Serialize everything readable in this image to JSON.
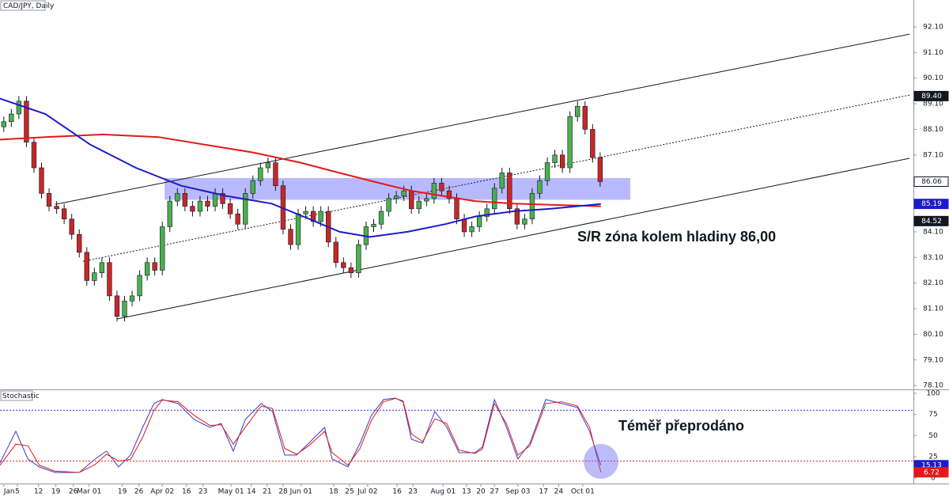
{
  "chart_data": [
    {
      "type": "candlestick",
      "title": "CAD/JPY, Daily",
      "annotation": "S/R zóna kolem hladiny 86,00",
      "xlim": [
        0,
        121
      ],
      "ylim": [
        77.95,
        93.15
      ],
      "yticks": [
        {
          "value": 78.1,
          "label": "78.10"
        },
        {
          "value": 79.1,
          "label": "79.10"
        },
        {
          "value": 80.1,
          "label": "80.10"
        },
        {
          "value": 81.1,
          "label": "81.10"
        },
        {
          "value": 82.1,
          "label": "82.10"
        },
        {
          "value": 83.1,
          "label": "83.10"
        },
        {
          "value": 84.1,
          "label": "84.10"
        },
        {
          "value": 85.1,
          "label": "85.10"
        },
        {
          "value": 86.1,
          "label": "86.10"
        },
        {
          "value": 87.1,
          "label": "87.10"
        },
        {
          "value": 88.1,
          "label": "88.10"
        },
        {
          "value": 89.1,
          "label": "89.10"
        },
        {
          "value": 90.1,
          "label": "90.10"
        },
        {
          "value": 91.1,
          "label": "91.10"
        },
        {
          "value": 92.1,
          "label": "92.10"
        }
      ],
      "xticks": [
        {
          "value": 0.5,
          "label": "Jan"
        },
        {
          "value": 2.3,
          "label": "5"
        },
        {
          "value": 5.1,
          "label": "12"
        },
        {
          "value": 7.4,
          "label": "19"
        },
        {
          "value": 9.7,
          "label": "26"
        },
        {
          "value": 11.8,
          "label": "Mar 01"
        },
        {
          "value": 16.2,
          "label": "19"
        },
        {
          "value": 18.4,
          "label": "26"
        },
        {
          "value": 21.5,
          "label": "Apr 02"
        },
        {
          "value": 24.7,
          "label": "16"
        },
        {
          "value": 26.9,
          "label": "23"
        },
        {
          "value": 30.6,
          "label": "May 01"
        },
        {
          "value": 33.3,
          "label": "14"
        },
        {
          "value": 35.4,
          "label": "21"
        },
        {
          "value": 37.5,
          "label": "28"
        },
        {
          "value": 39.9,
          "label": "Jun 01"
        },
        {
          "value": 44.2,
          "label": "18"
        },
        {
          "value": 46.3,
          "label": "25"
        },
        {
          "value": 48.7,
          "label": "Jul 02"
        },
        {
          "value": 52.6,
          "label": "16"
        },
        {
          "value": 54.7,
          "label": "23"
        },
        {
          "value": 58.7,
          "label": "Aug 01"
        },
        {
          "value": 61.8,
          "label": "13"
        },
        {
          "value": 63.7,
          "label": "20"
        },
        {
          "value": 65.5,
          "label": "27"
        },
        {
          "value": 68.6,
          "label": "Sep 03"
        },
        {
          "value": 72,
          "label": "17"
        },
        {
          "value": 74,
          "label": "24"
        },
        {
          "value": 77.2,
          "label": "Oct 01"
        }
      ],
      "up_color": "#4caf50",
      "down_color": "#c62828",
      "open": [
        88.2,
        88.4,
        88.7,
        89.2,
        87.6,
        86.6,
        85.6,
        85.1,
        85.0,
        84.6,
        84.0,
        83.3,
        82.2,
        82.5,
        82.9,
        81.6,
        80.8,
        81.4,
        81.6,
        82.4,
        82.9,
        82.6,
        84.3,
        85.3,
        85.6,
        85.1,
        84.9,
        85.3,
        85.1,
        85.6,
        85.2,
        84.8,
        84.4,
        85.6,
        86.1,
        86.6,
        86.8,
        85.9,
        84.2,
        83.6,
        84.8,
        84.9,
        84.5,
        84.9,
        83.7,
        82.9,
        82.7,
        82.5,
        83.6,
        84.3,
        84.4,
        84.9,
        85.4,
        85.5,
        85.7,
        85.0,
        85.3,
        85.4,
        86.0,
        85.7,
        85.4,
        84.6,
        84.1,
        84.3,
        84.7,
        85.0,
        85.8,
        86.4,
        85.0,
        84.4,
        84.6,
        85.6,
        86.1,
        86.8,
        87.1,
        86.6,
        88.6,
        89.0,
        88.1,
        87.0
      ],
      "high": [
        88.6,
        88.9,
        89.4,
        89.4,
        87.8,
        86.8,
        85.8,
        85.3,
        85.2,
        84.8,
        84.2,
        83.5,
        82.7,
        83.1,
        83.1,
        81.8,
        81.6,
        81.8,
        82.6,
        83.1,
        83.1,
        84.5,
        85.5,
        85.8,
        85.8,
        85.3,
        85.5,
        85.5,
        85.8,
        85.8,
        85.4,
        85.0,
        85.8,
        86.3,
        86.8,
        87.0,
        87.0,
        86.1,
        84.4,
        85.0,
        85.1,
        85.1,
        85.1,
        85.1,
        83.9,
        83.1,
        82.9,
        83.8,
        84.5,
        84.6,
        85.1,
        85.6,
        85.7,
        85.9,
        85.9,
        85.5,
        85.6,
        86.2,
        86.2,
        85.9,
        85.6,
        84.8,
        84.5,
        84.9,
        85.2,
        86.0,
        86.6,
        86.6,
        85.2,
        84.8,
        85.8,
        86.3,
        87.0,
        87.3,
        87.3,
        88.8,
        89.2,
        89.2,
        88.3,
        87.2
      ],
      "low": [
        88.0,
        88.2,
        88.5,
        87.4,
        86.4,
        85.4,
        84.9,
        84.8,
        84.4,
        83.8,
        83.1,
        82.0,
        82.0,
        82.3,
        81.4,
        80.6,
        80.6,
        81.2,
        81.4,
        82.2,
        82.4,
        82.4,
        84.1,
        85.1,
        84.9,
        84.7,
        84.7,
        84.9,
        84.9,
        85.0,
        84.6,
        84.2,
        84.2,
        85.4,
        85.9,
        86.4,
        85.7,
        84.0,
        83.4,
        83.4,
        84.6,
        84.3,
        84.3,
        83.5,
        82.7,
        82.5,
        82.3,
        82.3,
        83.4,
        84.1,
        84.2,
        84.7,
        85.2,
        85.3,
        84.8,
        84.8,
        85.1,
        85.2,
        85.5,
        85.2,
        84.4,
        83.9,
        83.9,
        84.1,
        84.5,
        84.8,
        85.6,
        84.8,
        84.2,
        84.2,
        84.4,
        85.4,
        85.9,
        86.6,
        86.4,
        86.4,
        88.4,
        87.9,
        86.8,
        85.86
      ],
      "close": [
        88.4,
        88.7,
        89.2,
        87.6,
        86.6,
        85.6,
        85.1,
        85.0,
        84.6,
        84.0,
        83.3,
        82.2,
        82.5,
        82.9,
        81.6,
        80.8,
        81.4,
        81.6,
        82.4,
        82.9,
        82.6,
        84.3,
        85.3,
        85.6,
        85.1,
        84.9,
        85.3,
        85.1,
        85.6,
        85.2,
        84.8,
        84.4,
        85.6,
        86.1,
        86.6,
        86.8,
        85.9,
        84.2,
        83.6,
        84.8,
        84.9,
        84.5,
        84.9,
        83.7,
        82.9,
        82.7,
        82.5,
        83.6,
        84.3,
        84.4,
        84.9,
        85.4,
        85.5,
        85.7,
        85.0,
        85.3,
        85.4,
        86.0,
        85.7,
        85.4,
        84.6,
        84.1,
        84.3,
        84.7,
        85.0,
        85.8,
        86.4,
        85.0,
        84.4,
        84.6,
        85.6,
        86.1,
        86.8,
        87.1,
        86.6,
        88.6,
        89.0,
        88.1,
        87.0,
        86.06
      ],
      "lines": [
        {
          "color": "#e01a1a",
          "x": [
            0,
            6,
            13.6,
            21,
            27.2,
            33.5,
            39.8,
            45,
            50.3,
            54.5,
            58.7,
            62.9,
            68.1,
            73.3,
            79.6
          ],
          "values": [
            87.7,
            87.8,
            87.9,
            87.8,
            87.5,
            87.2,
            86.8,
            86.4,
            86.0,
            85.7,
            85.5,
            85.3,
            85.2,
            85.15,
            85.1
          ]
        },
        {
          "color": "#1c1cc8",
          "x": [
            0,
            6,
            12,
            18,
            24,
            30,
            36,
            41,
            45,
            49,
            54,
            59,
            63,
            68,
            73,
            79.6
          ],
          "values": [
            89.3,
            88.7,
            87.5,
            86.6,
            85.9,
            85.5,
            85.2,
            84.6,
            84.1,
            83.9,
            84.1,
            84.4,
            84.7,
            84.9,
            85.0,
            85.19
          ]
        }
      ],
      "trendlines": [
        {
          "style": "solid",
          "x": [
            7.3,
            120.5
          ],
          "values": [
            85.17,
            91.82
          ]
        },
        {
          "style": "dotted",
          "x": [
            11,
            120.5
          ],
          "values": [
            82.95,
            89.44
          ]
        },
        {
          "style": "solid",
          "x": [
            15.5,
            120.5
          ],
          "values": [
            80.7,
            86.97
          ]
        }
      ],
      "zone": {
        "color": "#8080ff",
        "x": [
          21.8,
          83.5
        ],
        "values": [
          85.35,
          86.2
        ]
      },
      "price_labels": [
        {
          "value": 89.4,
          "label": "89.40",
          "color": "#131722",
          "text_color": "#ffffff"
        },
        {
          "value": 86.06,
          "label": "86.06",
          "color": "#ffffff",
          "text_color": "#131722"
        },
        {
          "value": 85.19,
          "label": "85.19",
          "color": "#1c1cc8",
          "text_color": "#ffffff"
        },
        {
          "value": 84.52,
          "label": "84.52",
          "color": "#131722",
          "text_color": "#ffffff"
        }
      ]
    },
    {
      "type": "line",
      "title": "Stochastic",
      "annotation": "Téměř přeprodáno",
      "xlim": [
        0,
        121
      ],
      "ylim": [
        -5.6,
        103.7
      ],
      "yticks": [
        0,
        25,
        50,
        75,
        100
      ],
      "levels": [
        {
          "value": 80,
          "color": "#3a3ad0"
        },
        {
          "value": 20,
          "color": "#e01a1a"
        }
      ],
      "lines": [
        {
          "color": "#3a3ad0",
          "x": [
            0,
            2.1,
            3.7,
            5.2,
            7.3,
            10.5,
            12.6,
            14.1,
            15.7,
            17.3,
            18.9,
            20.4,
            21.5,
            23.6,
            25.7,
            27.8,
            29.3,
            30.9,
            32.5,
            34.6,
            36.1,
            37.7,
            39.3,
            40.9,
            43,
            44,
            46.1,
            47.7,
            49.2,
            50.8,
            52.4,
            53.4,
            54.5,
            56,
            57.6,
            59.2,
            60.8,
            62.9,
            63.9,
            65.5,
            67.1,
            68.6,
            70.2,
            72.3,
            74.4,
            76.5,
            78.1,
            79.6
          ],
          "values": [
            17.8,
            55.2,
            22.4,
            13.1,
            6.5,
            6.5,
            22.4,
            31.8,
            13.1,
            27.1,
            59.8,
            87.9,
            92.6,
            87.9,
            69.2,
            59.8,
            64.5,
            31.8,
            69.2,
            87.9,
            78.5,
            27.1,
            27.1,
            41.1,
            59.8,
            22.4,
            13.1,
            41.1,
            73.9,
            92.6,
            94.4,
            89.8,
            45.8,
            41.1,
            78.5,
            59.8,
            29.9,
            29.9,
            36.5,
            92.6,
            59.8,
            22.4,
            41.1,
            92.6,
            87.9,
            83.2,
            55.2,
            15.13
          ]
        },
        {
          "color": "#e01a1a",
          "x": [
            0,
            2.1,
            3.7,
            5.2,
            7.3,
            10.5,
            12.6,
            14.1,
            15.7,
            17.3,
            18.9,
            20.4,
            21.5,
            23.6,
            25.7,
            27.8,
            29.3,
            30.9,
            32.5,
            34.6,
            36.1,
            37.7,
            39.3,
            40.9,
            43,
            44,
            46.1,
            47.7,
            49.2,
            50.8,
            52.4,
            53.4,
            54.5,
            56,
            57.6,
            59.2,
            60.8,
            62.9,
            63.9,
            65.5,
            67.1,
            68.6,
            70.2,
            72.3,
            74.4,
            76.5,
            78.1,
            79.6
          ],
          "values": [
            15,
            40,
            38,
            15,
            8,
            6.5,
            16,
            28,
            20,
            22,
            48,
            80,
            92,
            90,
            74,
            62,
            63,
            40,
            60,
            85,
            82,
            35,
            28,
            38,
            55,
            30,
            15,
            35,
            68,
            90,
            94,
            91,
            52,
            43,
            70,
            64,
            33,
            29,
            34,
            88,
            64,
            27,
            38,
            88,
            90,
            85,
            60,
            6.72
          ]
        }
      ],
      "price_labels": [
        {
          "value": 15.13,
          "label": "15.13",
          "color": "#1c1cc8",
          "text_color": "#ffffff"
        },
        {
          "value": 6.72,
          "label": "6.72",
          "color": "#e01a1a",
          "text_color": "#ffffff"
        }
      ]
    }
  ]
}
